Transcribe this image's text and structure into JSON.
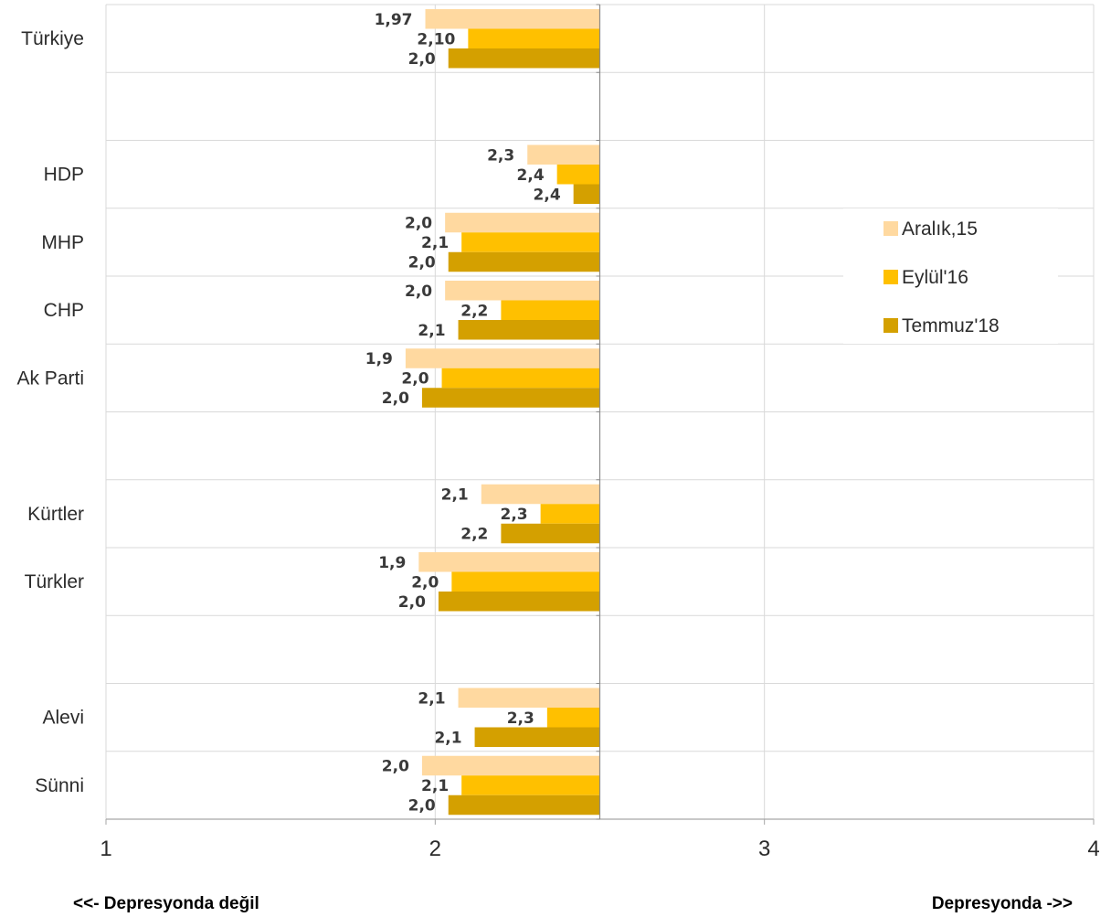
{
  "chart_data": {
    "type": "bar",
    "orientation": "horizontal",
    "x_range": [
      1,
      4
    ],
    "x_ticks": [
      "1",
      "2",
      "3",
      "4"
    ],
    "baseline": 2.5,
    "grid": true,
    "legend_position": "right",
    "rows": [
      {
        "label": "Türkiye",
        "values": [
          1.97,
          2.1,
          2.04
        ],
        "labels": [
          "1,97",
          "2,10",
          "2,0"
        ]
      },
      {
        "label": "",
        "spacer": true
      },
      {
        "label": "HDP",
        "values": [
          2.28,
          2.37,
          2.42
        ],
        "labels": [
          "2,3",
          "2,4",
          "2,4"
        ]
      },
      {
        "label": "MHP",
        "values": [
          2.03,
          2.08,
          2.04
        ],
        "labels": [
          "2,0",
          "2,1",
          "2,0"
        ]
      },
      {
        "label": "CHP",
        "values": [
          2.03,
          2.2,
          2.07
        ],
        "labels": [
          "2,0",
          "2,2",
          "2,1"
        ]
      },
      {
        "label": "Ak Parti",
        "values": [
          1.91,
          2.02,
          1.96
        ],
        "labels": [
          "1,9",
          "2,0",
          "2,0"
        ]
      },
      {
        "label": "",
        "spacer": true
      },
      {
        "label": "Kürtler",
        "values": [
          2.14,
          2.32,
          2.2
        ],
        "labels": [
          "2,1",
          "2,3",
          "2,2"
        ]
      },
      {
        "label": "Türkler",
        "values": [
          1.95,
          2.05,
          2.01
        ],
        "labels": [
          "1,9",
          "2,0",
          "2,0"
        ]
      },
      {
        "label": "",
        "spacer": true
      },
      {
        "label": "Alevi",
        "values": [
          2.07,
          2.34,
          2.12
        ],
        "labels": [
          "2,1",
          "2,3",
          "2,1"
        ]
      },
      {
        "label": "Sünni",
        "values": [
          1.96,
          2.08,
          2.04
        ],
        "labels": [
          "2,0",
          "2,1",
          "2,0"
        ]
      }
    ],
    "series": [
      {
        "name": "Aralık,15",
        "color": "#FFD9A0"
      },
      {
        "name": "Eylül'16",
        "color": "#FFC000"
      },
      {
        "name": "Temmuz'18",
        "color": "#D4A000"
      }
    ]
  },
  "footer": {
    "left": "<<- Depresyonda değil",
    "right": "Depresyonda ->>"
  }
}
